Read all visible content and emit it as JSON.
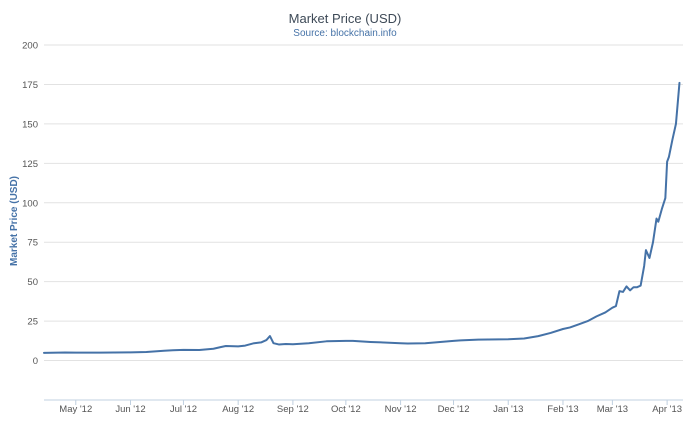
{
  "chart_data": {
    "type": "line",
    "title": "Market Price (USD)",
    "subtitle": "Source: blockchain.info",
    "ylabel": "Market Price (USD)",
    "xlabel": "",
    "ylim": [
      -25,
      200
    ],
    "yticks": [
      0,
      25,
      50,
      75,
      100,
      125,
      150,
      175,
      200
    ],
    "xlim": [
      "2012-04-13",
      "2013-04-10"
    ],
    "xticks": [
      {
        "label": "May '12",
        "date": "2012-05-01"
      },
      {
        "label": "Jun '12",
        "date": "2012-06-01"
      },
      {
        "label": "Jul '12",
        "date": "2012-07-01"
      },
      {
        "label": "Aug '12",
        "date": "2012-08-01"
      },
      {
        "label": "Sep '12",
        "date": "2012-09-01"
      },
      {
        "label": "Oct '12",
        "date": "2012-10-01"
      },
      {
        "label": "Nov '12",
        "date": "2012-11-01"
      },
      {
        "label": "Dec '12",
        "date": "2012-12-01"
      },
      {
        "label": "Jan '13",
        "date": "2013-01-01"
      },
      {
        "label": "Feb '13",
        "date": "2013-02-01"
      },
      {
        "label": "Mar '13",
        "date": "2013-03-01"
      },
      {
        "label": "Apr '13",
        "date": "2013-04-01"
      }
    ],
    "grid": "horizontal",
    "series": [
      {
        "color": "#4572a7",
        "points": [
          [
            "2012-04-13",
            4.9
          ],
          [
            "2012-04-25",
            5.1
          ],
          [
            "2012-05-01",
            5.0
          ],
          [
            "2012-05-15",
            5.0
          ],
          [
            "2012-06-01",
            5.2
          ],
          [
            "2012-06-10",
            5.4
          ],
          [
            "2012-06-20",
            6.2
          ],
          [
            "2012-06-25",
            6.5
          ],
          [
            "2012-07-01",
            6.8
          ],
          [
            "2012-07-10",
            6.7
          ],
          [
            "2012-07-18",
            7.5
          ],
          [
            "2012-07-22",
            8.5
          ],
          [
            "2012-07-25",
            9.2
          ],
          [
            "2012-08-01",
            9.0
          ],
          [
            "2012-08-05",
            9.5
          ],
          [
            "2012-08-10",
            11.0
          ],
          [
            "2012-08-14",
            11.5
          ],
          [
            "2012-08-17",
            13.0
          ],
          [
            "2012-08-19",
            15.5
          ],
          [
            "2012-08-21",
            11.0
          ],
          [
            "2012-08-24",
            10.2
          ],
          [
            "2012-08-28",
            10.5
          ],
          [
            "2012-09-01",
            10.3
          ],
          [
            "2012-09-10",
            11.0
          ],
          [
            "2012-09-20",
            12.2
          ],
          [
            "2012-10-01",
            12.5
          ],
          [
            "2012-10-05",
            12.5
          ],
          [
            "2012-10-15",
            11.8
          ],
          [
            "2012-11-01",
            11.0
          ],
          [
            "2012-11-05",
            10.8
          ],
          [
            "2012-11-15",
            11.0
          ],
          [
            "2012-12-01",
            12.5
          ],
          [
            "2012-12-05",
            12.8
          ],
          [
            "2012-12-15",
            13.3
          ],
          [
            "2013-01-01",
            13.5
          ],
          [
            "2013-01-10",
            14.0
          ],
          [
            "2013-01-18",
            15.5
          ],
          [
            "2013-01-25",
            17.5
          ],
          [
            "2013-02-01",
            20.0
          ],
          [
            "2013-02-05",
            21.0
          ],
          [
            "2013-02-10",
            23.0
          ],
          [
            "2013-02-15",
            25.0
          ],
          [
            "2013-02-20",
            28.0
          ],
          [
            "2013-02-25",
            30.5
          ],
          [
            "2013-03-01",
            33.5
          ],
          [
            "2013-03-03",
            34.5
          ],
          [
            "2013-03-05",
            44.0
          ],
          [
            "2013-03-07",
            43.5
          ],
          [
            "2013-03-09",
            47.0
          ],
          [
            "2013-03-11",
            44.5
          ],
          [
            "2013-03-13",
            46.5
          ],
          [
            "2013-03-15",
            46.5
          ],
          [
            "2013-03-17",
            47.5
          ],
          [
            "2013-03-19",
            60.0
          ],
          [
            "2013-03-20",
            70.0
          ],
          [
            "2013-03-22",
            65.0
          ],
          [
            "2013-03-24",
            75.0
          ],
          [
            "2013-03-26",
            90.0
          ],
          [
            "2013-03-27",
            88.0
          ],
          [
            "2013-03-29",
            96.0
          ],
          [
            "2013-03-31",
            103.0
          ],
          [
            "2013-04-01",
            126.0
          ],
          [
            "2013-04-02",
            129.0
          ],
          [
            "2013-04-04",
            140.0
          ],
          [
            "2013-04-06",
            150.0
          ],
          [
            "2013-04-08",
            176.0
          ]
        ]
      }
    ]
  }
}
